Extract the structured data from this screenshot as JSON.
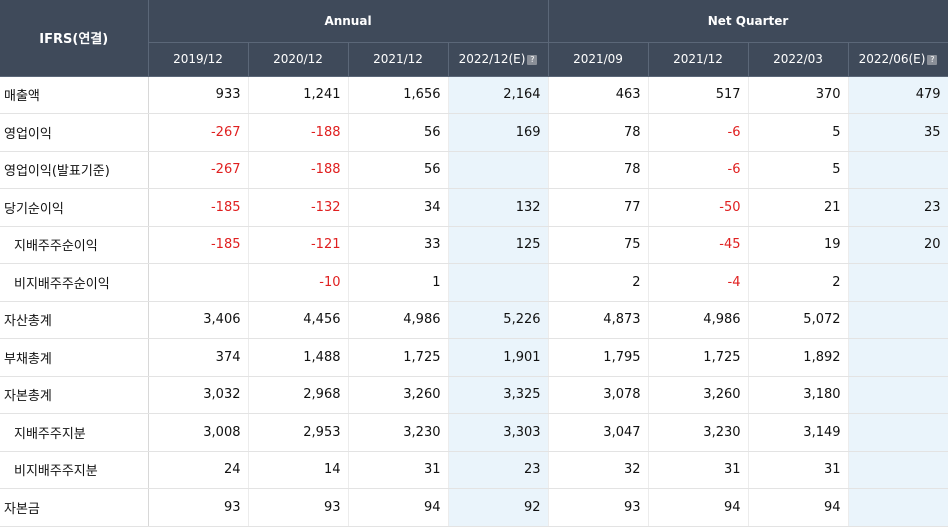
{
  "table": {
    "corner": "IFRS(연결)",
    "groups": {
      "annual": "Annual",
      "quarter": "Net Quarter"
    },
    "columns": [
      "2019/12",
      "2020/12",
      "2021/12",
      "2022/12(E)",
      "2021/09",
      "2021/12",
      "2022/03",
      "2022/06(E)"
    ],
    "estimate_columns": [
      3,
      7
    ],
    "rows": [
      {
        "label": "매출액",
        "sub": false,
        "values": [
          "933",
          "1,241",
          "1,656",
          "2,164",
          "463",
          "517",
          "370",
          "479"
        ]
      },
      {
        "label": "영업이익",
        "sub": false,
        "values": [
          "-267",
          "-188",
          "56",
          "169",
          "78",
          "-6",
          "5",
          "35"
        ]
      },
      {
        "label": "영업이익(발표기준)",
        "sub": false,
        "values": [
          "-267",
          "-188",
          "56",
          "",
          "78",
          "-6",
          "5",
          ""
        ]
      },
      {
        "label": "당기순이익",
        "sub": false,
        "values": [
          "-185",
          "-132",
          "34",
          "132",
          "77",
          "-50",
          "21",
          "23"
        ]
      },
      {
        "label": "지배주주순이익",
        "sub": true,
        "values": [
          "-185",
          "-121",
          "33",
          "125",
          "75",
          "-45",
          "19",
          "20"
        ]
      },
      {
        "label": "비지배주주순이익",
        "sub": true,
        "values": [
          "",
          "-10",
          "1",
          "",
          "2",
          "-4",
          "2",
          ""
        ]
      },
      {
        "label": "자산총계",
        "sub": false,
        "values": [
          "3,406",
          "4,456",
          "4,986",
          "5,226",
          "4,873",
          "4,986",
          "5,072",
          ""
        ]
      },
      {
        "label": "부채총계",
        "sub": false,
        "values": [
          "374",
          "1,488",
          "1,725",
          "1,901",
          "1,795",
          "1,725",
          "1,892",
          ""
        ]
      },
      {
        "label": "자본총계",
        "sub": false,
        "values": [
          "3,032",
          "2,968",
          "3,260",
          "3,325",
          "3,078",
          "3,260",
          "3,180",
          ""
        ]
      },
      {
        "label": "지배주주지분",
        "sub": true,
        "values": [
          "3,008",
          "2,953",
          "3,230",
          "3,303",
          "3,047",
          "3,230",
          "3,149",
          ""
        ]
      },
      {
        "label": "비지배주주지분",
        "sub": true,
        "values": [
          "24",
          "14",
          "31",
          "23",
          "32",
          "31",
          "31",
          ""
        ]
      },
      {
        "label": "자본금",
        "sub": false,
        "values": [
          "93",
          "93",
          "94",
          "92",
          "93",
          "94",
          "94",
          ""
        ]
      }
    ]
  },
  "colors": {
    "header_bg": "#3f4a5a",
    "estimate_bg": "#eaf4fb",
    "negative": "#e02020"
  },
  "icons": {
    "estimate_help": "help-icon"
  }
}
